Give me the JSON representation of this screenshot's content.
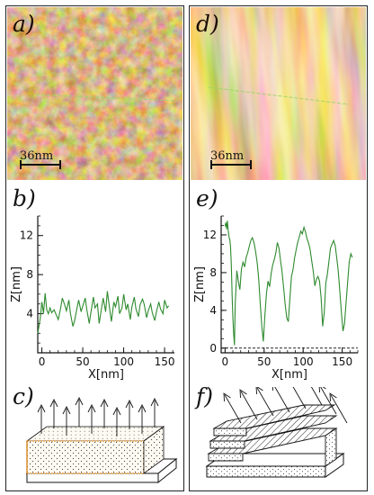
{
  "panels": {
    "a": {
      "label": "a)",
      "scale_bar": "36nm"
    },
    "b": {
      "label": "b)"
    },
    "c": {
      "label": "c)"
    },
    "d": {
      "label": "d)",
      "scale_bar": "36nm"
    },
    "e": {
      "label": "e)"
    },
    "f": {
      "label": "f)"
    }
  },
  "colors": {
    "afm_dark": "#7a3a12",
    "afm_mid": "#c87a3a",
    "afm_light": "#f7d7a8",
    "profile_line": "#2e8a2e",
    "scan_line": "#9fd46a",
    "box_orange": "#d98a2a"
  },
  "chart_data": [
    {
      "type": "line",
      "panel": "b",
      "xlabel": "X[nm]",
      "ylabel": "Z[nm]",
      "xlim": [
        -5,
        162
      ],
      "ylim": [
        0,
        14
      ],
      "xticks": [
        0,
        50,
        100,
        150
      ],
      "yticks": [
        4,
        8,
        12
      ],
      "series": [
        {
          "x": [
            -5,
            -2,
            0,
            2,
            4,
            6,
            8,
            10,
            12,
            15,
            18,
            20,
            23,
            25,
            28,
            30,
            33,
            35,
            38,
            40,
            43,
            45,
            48,
            50,
            53,
            55,
            58,
            60,
            63,
            65,
            68,
            70,
            73,
            75,
            78,
            80,
            83,
            85,
            88,
            90,
            93,
            95,
            98,
            100,
            103,
            105,
            108,
            110,
            113,
            115,
            118,
            120,
            123,
            125,
            128,
            130,
            133,
            135,
            138,
            140,
            143,
            145,
            148,
            150,
            153,
            155
          ],
          "y": [
            2.0,
            3.5,
            5.2,
            4.0,
            6.1,
            4.4,
            4.0,
            4.6,
            4.1,
            4.4,
            3.8,
            3.4,
            4.6,
            5.6,
            4.9,
            4.3,
            5.4,
            4.0,
            2.7,
            3.3,
            4.6,
            5.4,
            4.2,
            4.8,
            5.6,
            4.4,
            3.0,
            4.2,
            5.7,
            4.6,
            5.0,
            3.0,
            4.6,
            5.6,
            4.2,
            6.3,
            4.4,
            3.2,
            5.2,
            4.7,
            5.8,
            4.0,
            4.6,
            6.0,
            4.4,
            5.0,
            3.4,
            4.7,
            5.7,
            4.5,
            3.7,
            4.9,
            5.5,
            5.0,
            3.6,
            4.3,
            5.0,
            4.1,
            3.3,
            4.2,
            5.2,
            4.5,
            4.0,
            5.4,
            4.6,
            4.8
          ]
        }
      ]
    },
    {
      "type": "line",
      "panel": "e",
      "xlabel": "X[nm]",
      "ylabel": "Z[nm]",
      "xlim": [
        -5,
        170
      ],
      "ylim": [
        -0.5,
        14
      ],
      "xticks": [
        0,
        50,
        100,
        150
      ],
      "yticks": [
        0,
        4,
        8,
        12
      ],
      "baseline": 0,
      "series": [
        {
          "x": [
            0,
            1,
            2,
            3,
            4,
            5,
            6,
            7,
            8,
            9,
            10,
            11,
            12,
            13,
            15,
            17,
            19,
            21,
            23,
            25,
            27,
            29,
            31,
            33,
            35,
            37,
            39,
            41,
            43,
            45,
            47,
            49,
            51,
            53,
            55,
            57,
            59,
            61,
            63,
            65,
            67,
            69,
            71,
            73,
            75,
            77,
            79,
            81,
            83,
            85,
            87,
            89,
            91,
            93,
            95,
            97,
            99,
            101,
            103,
            105,
            107,
            109,
            111,
            113,
            115,
            117,
            119,
            121,
            123,
            125,
            127,
            129,
            131,
            133,
            135,
            137,
            139,
            141,
            143,
            145,
            147,
            149,
            151,
            153,
            155,
            157,
            159,
            161,
            163
          ],
          "y": [
            12.9,
            13.3,
            12.6,
            13.5,
            12.5,
            11.8,
            11.5,
            10.8,
            8.8,
            5.6,
            3.3,
            1.5,
            0.3,
            4.6,
            8.2,
            7.1,
            6.2,
            8.4,
            9.1,
            8.6,
            9.6,
            10.1,
            10.8,
            11.4,
            11.7,
            11.2,
            10.3,
            9.1,
            7.4,
            4.8,
            2.3,
            0.7,
            3.4,
            5.8,
            7.1,
            6.5,
            7.9,
            8.8,
            9.4,
            10.1,
            11.2,
            10.6,
            9.3,
            8.1,
            6.4,
            4.6,
            3.2,
            2.8,
            5.2,
            7.6,
            8.3,
            9.5,
            10.4,
            11.2,
            11.8,
            12.4,
            12.1,
            12.8,
            12.3,
            11.6,
            11.1,
            10.4,
            9.2,
            8.1,
            6.6,
            7.3,
            7.6,
            7.1,
            5.3,
            2.3,
            3.8,
            6.9,
            7.8,
            9.2,
            10.6,
            11.0,
            11.4,
            10.9,
            9.6,
            8.1,
            6.0,
            3.7,
            1.8,
            2.6,
            4.9,
            7.0,
            9.1,
            10.0,
            9.6
          ]
        }
      ]
    }
  ]
}
